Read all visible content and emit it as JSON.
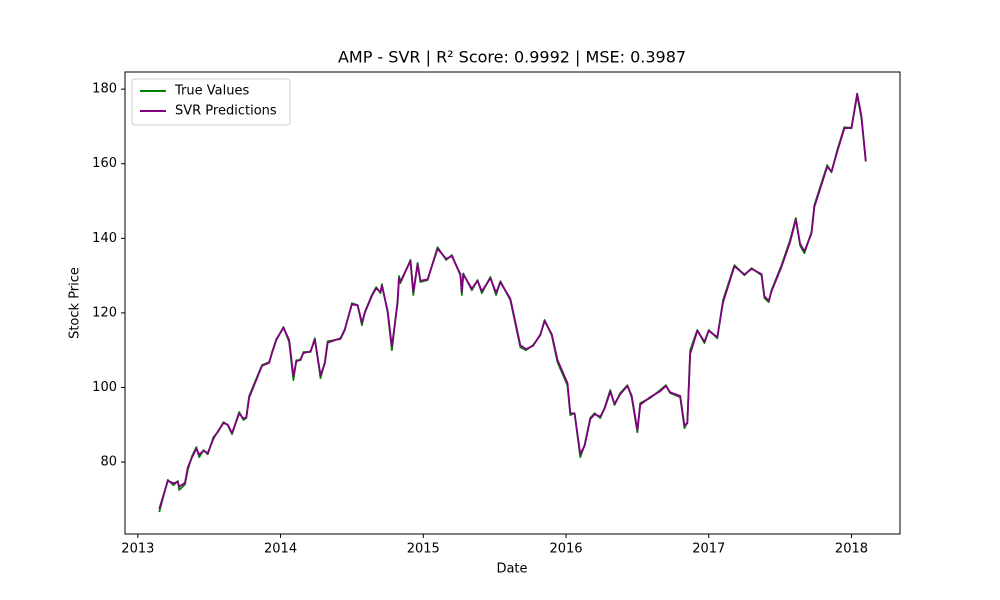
{
  "chart_data": {
    "type": "line",
    "title": "AMP - SVR | R² Score: 0.9992 | MSE: 0.3987",
    "x_label": "Date",
    "y_label": "Stock Price",
    "x": [
      2013.15,
      2013.21,
      2013.25,
      2013.28,
      2013.29,
      2013.33,
      2013.35,
      2013.38,
      2013.41,
      2013.43,
      2013.46,
      2013.49,
      2013.53,
      2013.56,
      2013.6,
      2013.63,
      2013.66,
      2013.71,
      2013.74,
      2013.76,
      2013.78,
      2013.87,
      2013.92,
      2013.94,
      2013.97,
      2014.02,
      2014.06,
      2014.09,
      2014.11,
      2014.14,
      2014.16,
      2014.21,
      2014.24,
      2014.28,
      2014.31,
      2014.33,
      2014.42,
      2014.45,
      2014.5,
      2014.54,
      2014.57,
      2014.59,
      2014.64,
      2014.67,
      2014.7,
      2014.71,
      2014.75,
      2014.78,
      2014.82,
      2014.83,
      2014.84,
      2014.91,
      2014.93,
      2014.96,
      2014.98,
      2015.03,
      2015.1,
      2015.16,
      2015.2,
      2015.26,
      2015.27,
      2015.28,
      2015.34,
      2015.38,
      2015.41,
      2015.47,
      2015.51,
      2015.54,
      2015.61,
      2015.68,
      2015.72,
      2015.77,
      2015.82,
      2015.85,
      2015.9,
      2015.94,
      2016.01,
      2016.03,
      2016.06,
      2016.1,
      2016.13,
      2016.17,
      2016.2,
      2016.24,
      2016.27,
      2016.31,
      2016.34,
      2016.38,
      2016.43,
      2016.46,
      2016.5,
      2016.52,
      2016.59,
      2016.66,
      2016.7,
      2016.73,
      2016.8,
      2016.83,
      2016.85,
      2016.87,
      2016.92,
      2016.97,
      2017.0,
      2017.06,
      2017.1,
      2017.18,
      2017.25,
      2017.3,
      2017.37,
      2017.39,
      2017.42,
      2017.44,
      2017.51,
      2017.57,
      2017.61,
      2017.64,
      2017.67,
      2017.72,
      2017.74,
      2017.83,
      2017.86,
      2017.9,
      2017.95,
      2018.0,
      2018.04,
      2018.07,
      2018.1
    ],
    "series": [
      {
        "name": "True Values",
        "color": "#008000",
        "values": [
          66.6,
          75.2,
          73.8,
          74.9,
          72.5,
          74.0,
          77.9,
          81.6,
          84.0,
          81.3,
          83.2,
          82.1,
          86.7,
          88.0,
          90.7,
          89.9,
          87.5,
          93.4,
          91.3,
          91.8,
          97.7,
          106.0,
          106.8,
          109.2,
          112.7,
          116.2,
          112.2,
          102.0,
          107.3,
          107.3,
          109.5,
          109.5,
          113.2,
          102.5,
          106.8,
          112.4,
          113.0,
          115.4,
          122.6,
          122.1,
          116.7,
          120.2,
          124.8,
          126.9,
          125.3,
          127.7,
          120.2,
          110.0,
          123.4,
          129.9,
          128.0,
          134.2,
          124.8,
          133.4,
          128.3,
          128.8,
          137.6,
          134.2,
          135.5,
          130.1,
          124.8,
          130.6,
          126.1,
          128.8,
          125.3,
          129.6,
          124.8,
          128.5,
          123.4,
          110.8,
          110.0,
          111.4,
          114.0,
          118.1,
          114.0,
          106.8,
          100.6,
          92.6,
          93.1,
          81.3,
          84.6,
          91.8,
          93.1,
          91.8,
          94.5,
          99.3,
          95.3,
          98.5,
          100.6,
          97.4,
          88.0,
          95.8,
          97.2,
          99.3,
          100.6,
          98.5,
          97.4,
          89.1,
          90.7,
          110.0,
          115.4,
          111.9,
          115.4,
          113.2,
          123.4,
          132.8,
          130.1,
          132.0,
          130.1,
          124.0,
          122.9,
          126.1,
          132.8,
          139.5,
          145.4,
          138.1,
          136.0,
          141.7,
          148.9,
          159.6,
          157.7,
          163.6,
          169.8,
          169.5,
          178.4,
          172.2,
          161.0
        ]
      },
      {
        "name": "SVR Predictions",
        "color": "#800080",
        "values": [
          67.4,
          75.0,
          74.3,
          74.7,
          73.4,
          74.4,
          78.6,
          81.3,
          83.6,
          82.0,
          83.0,
          82.4,
          86.3,
          88.2,
          90.5,
          90.0,
          87.8,
          93.0,
          91.7,
          92.0,
          97.3,
          105.8,
          106.6,
          109.4,
          112.9,
          116.0,
          112.8,
          103.0,
          106.9,
          107.6,
          109.2,
          109.7,
          112.8,
          103.3,
          106.4,
          112.0,
          113.2,
          115.6,
          122.3,
          122.0,
          117.4,
          120.0,
          124.6,
          126.6,
          125.6,
          127.3,
          120.6,
          111.0,
          122.7,
          129.3,
          128.4,
          133.9,
          125.6,
          133.0,
          128.6,
          129.0,
          137.2,
          134.5,
          135.2,
          130.4,
          125.6,
          130.3,
          126.5,
          128.6,
          125.8,
          129.3,
          125.4,
          128.2,
          123.8,
          111.3,
          110.3,
          111.2,
          114.2,
          117.8,
          114.3,
          107.4,
          101.2,
          93.2,
          92.9,
          82.2,
          84.3,
          91.5,
          92.8,
          92.2,
          94.3,
          98.9,
          95.6,
          98.2,
          100.4,
          97.8,
          88.6,
          95.4,
          97.4,
          99.0,
          100.4,
          98.7,
          97.7,
          89.8,
          90.4,
          109.0,
          115.2,
          112.3,
          115.2,
          113.5,
          122.8,
          132.5,
          130.3,
          131.8,
          130.4,
          124.5,
          123.2,
          125.8,
          132.4,
          139.0,
          145.0,
          138.6,
          136.5,
          141.3,
          148.4,
          159.2,
          157.9,
          163.2,
          169.5,
          169.7,
          178.8,
          172.8,
          160.6
        ]
      }
    ],
    "xlim": [
      2012.91,
      2018.34
    ],
    "xticks": [
      2013,
      2014,
      2015,
      2016,
      2017,
      2018
    ],
    "ylim": [
      60.7,
      184.6
    ],
    "yticks": [
      80,
      100,
      120,
      140,
      160,
      180
    ],
    "grid": false,
    "legend": "upper left"
  }
}
